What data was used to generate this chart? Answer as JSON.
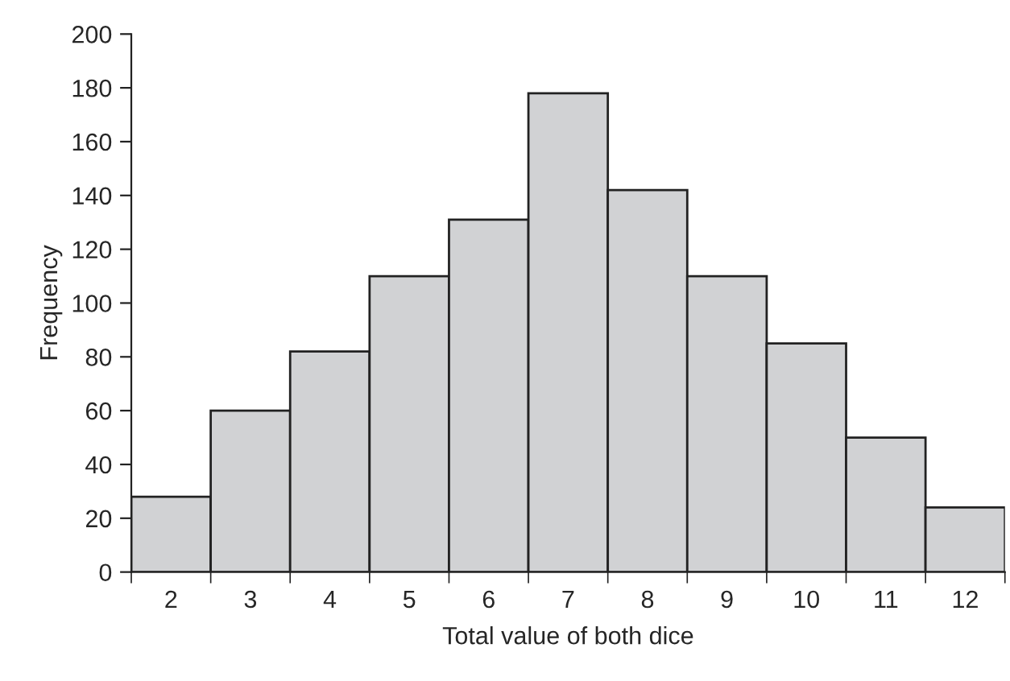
{
  "chart_data": {
    "type": "bar",
    "xlabel": "Total value of both dice",
    "ylabel": "Frequency",
    "categories": [
      "2",
      "3",
      "4",
      "5",
      "6",
      "7",
      "8",
      "9",
      "10",
      "11",
      "12"
    ],
    "values": [
      28,
      60,
      82,
      110,
      131,
      178,
      142,
      110,
      85,
      50,
      24
    ],
    "color": "#d1d2d4",
    "ylim": [
      0,
      200
    ],
    "yticks": [
      0,
      20,
      40,
      60,
      80,
      100,
      120,
      140,
      160,
      180,
      200
    ],
    "grid": false,
    "legend": false
  }
}
